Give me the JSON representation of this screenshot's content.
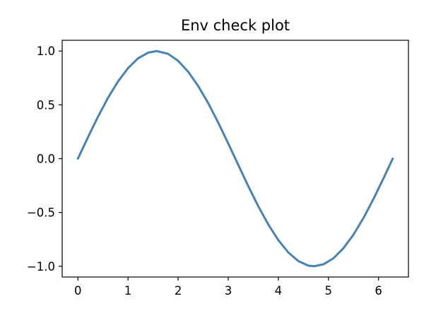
{
  "chart_data": {
    "type": "line",
    "title": "Env check plot",
    "xlabel": "",
    "ylabel": "",
    "xlim": [
      -0.314,
      6.597
    ],
    "ylim": [
      -1.1,
      1.1
    ],
    "grid": false,
    "legend": null,
    "x_ticks": [
      0,
      1,
      2,
      3,
      4,
      5,
      6
    ],
    "x_tick_labels": [
      "0",
      "1",
      "2",
      "3",
      "4",
      "5",
      "6"
    ],
    "y_ticks": [
      -1.0,
      -0.5,
      0.0,
      0.5,
      1.0
    ],
    "y_tick_labels": [
      "−1.0",
      "−0.5",
      "0.0",
      "0.5",
      "1.0"
    ],
    "colors": {
      "line": "#4682b4"
    },
    "series": [
      {
        "x": [
          0,
          0.2,
          0.4,
          0.6,
          0.8,
          1.0,
          1.2,
          1.4,
          1.571,
          1.8,
          2.0,
          2.2,
          2.4,
          2.6,
          2.8,
          3.0,
          3.142,
          3.4,
          3.6,
          3.8,
          4.0,
          4.2,
          4.4,
          4.6,
          4.712,
          4.9,
          5.1,
          5.3,
          5.5,
          5.7,
          5.9,
          6.1,
          6.283
        ],
        "y": [
          0.0,
          0.199,
          0.389,
          0.565,
          0.717,
          0.841,
          0.932,
          0.985,
          1.0,
          0.974,
          0.909,
          0.808,
          0.675,
          0.516,
          0.335,
          0.141,
          0.0,
          -0.256,
          -0.443,
          -0.612,
          -0.757,
          -0.872,
          -0.952,
          -0.994,
          -1.0,
          -0.982,
          -0.926,
          -0.832,
          -0.706,
          -0.551,
          -0.374,
          -0.182,
          0.0
        ]
      }
    ]
  }
}
